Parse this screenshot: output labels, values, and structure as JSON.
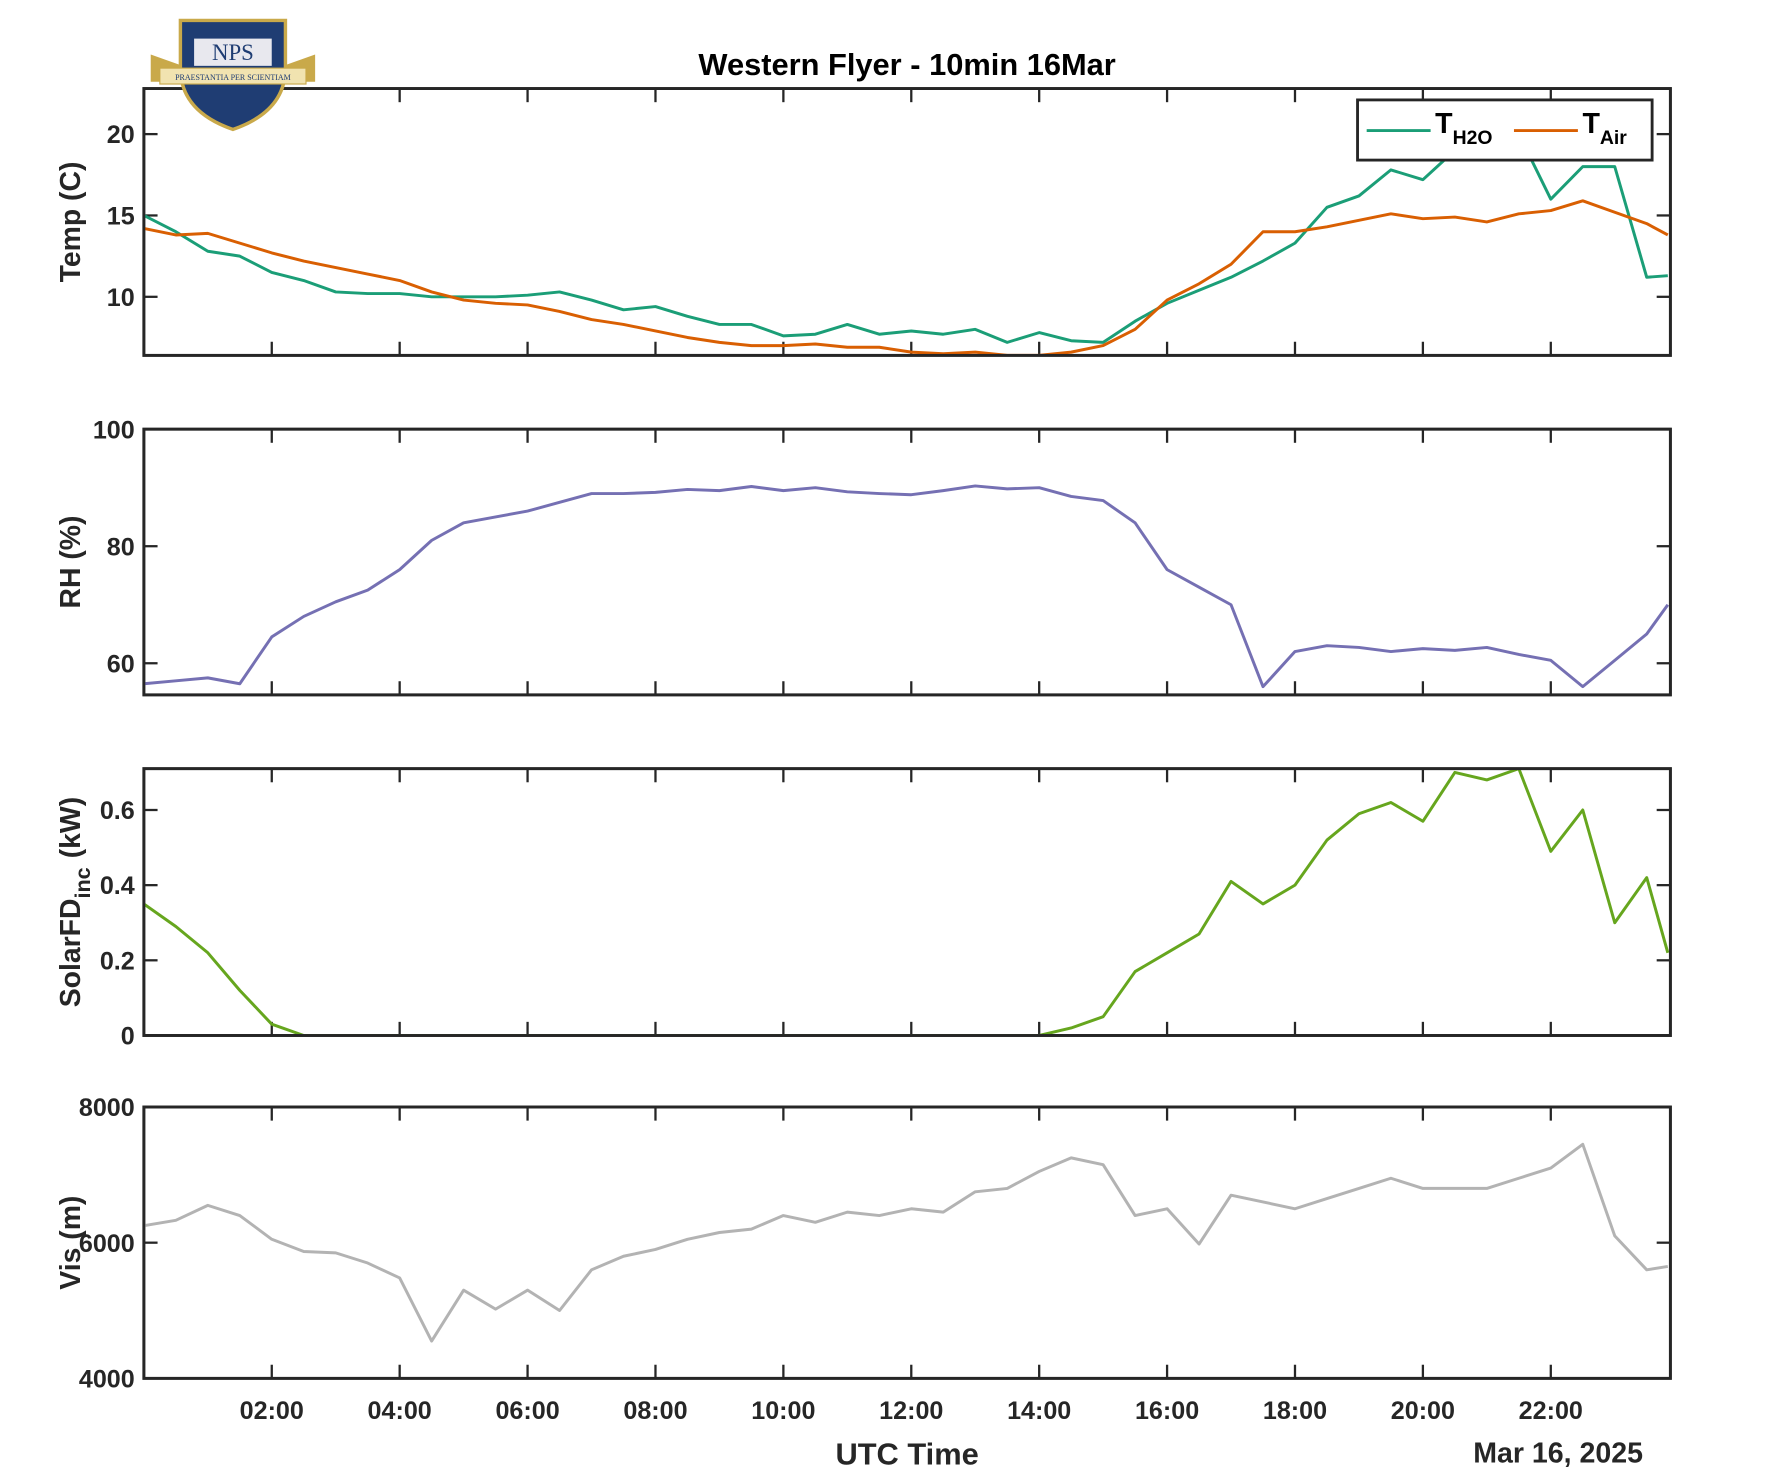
{
  "logo": {
    "text": "NPS",
    "motto": "PRAESTANTIA PER SCIENTIAM"
  },
  "chart_data": [
    {
      "type": "line",
      "title": "Western Flyer - 10min 16Mar",
      "ylabel": "Temp (C)",
      "x": [
        0,
        0.5,
        1,
        1.5,
        2,
        2.5,
        3,
        3.5,
        4,
        4.5,
        5,
        5.5,
        6,
        6.5,
        7,
        7.5,
        8,
        8.5,
        9,
        9.5,
        10,
        10.5,
        11,
        11.5,
        12,
        12.5,
        13,
        13.5,
        14,
        14.5,
        15,
        15.5,
        16,
        16.5,
        17,
        17.5,
        18,
        18.5,
        19,
        19.5,
        20,
        20.5,
        21,
        21.5,
        22,
        22.5,
        23,
        23.5,
        23.83
      ],
      "series": [
        {
          "name": "T",
          "name_sub": "H2O",
          "color": "#1b9e77",
          "values": [
            15,
            14,
            12.8,
            12.5,
            11.5,
            11,
            10.3,
            10.2,
            10.2,
            10,
            10,
            10,
            10.1,
            10.3,
            9.8,
            9.2,
            9.4,
            8.8,
            8.3,
            8.3,
            7.6,
            7.7,
            8.3,
            7.7,
            7.9,
            7.7,
            8,
            7.2,
            7.8,
            7.3,
            7.2,
            8.5,
            9.6,
            10.4,
            11.2,
            12.2,
            13.3,
            15.5,
            16.2,
            17.8,
            17.2,
            19,
            20.8,
            20,
            16,
            18,
            18,
            11.2,
            11.3
          ]
        },
        {
          "name": "T",
          "name_sub": "Air",
          "color": "#d95f02",
          "values": [
            14.2,
            13.8,
            13.9,
            13.3,
            12.7,
            12.2,
            11.8,
            11.4,
            11,
            10.3,
            9.8,
            9.6,
            9.5,
            9.1,
            8.6,
            8.3,
            7.9,
            7.5,
            7.2,
            7,
            7,
            7.1,
            6.9,
            6.9,
            6.6,
            6.5,
            6.6,
            6.4,
            6.4,
            6.6,
            7,
            8,
            9.8,
            10.8,
            12,
            14,
            14,
            14.3,
            14.7,
            15.1,
            14.8,
            14.9,
            14.6,
            15.1,
            15.3,
            15.9,
            15.2,
            14.5,
            13.8
          ]
        }
      ],
      "xlim": [
        0,
        23.87
      ],
      "xticks": [
        2,
        4,
        6,
        8,
        10,
        12,
        14,
        16,
        18,
        20,
        22
      ],
      "ylim": [
        6.4,
        22.8
      ],
      "yticks": [
        10,
        15,
        20
      ],
      "legend": "upper right"
    },
    {
      "type": "line",
      "ylabel": "RH (%)",
      "x": [
        0,
        0.5,
        1,
        1.5,
        2,
        2.5,
        3,
        3.5,
        4,
        4.5,
        5,
        5.5,
        6,
        6.5,
        7,
        7.5,
        8,
        8.5,
        9,
        9.5,
        10,
        10.5,
        11,
        11.5,
        12,
        12.5,
        13,
        13.5,
        14,
        14.5,
        15,
        15.5,
        16,
        16.5,
        17,
        17.5,
        18,
        18.5,
        19,
        19.5,
        20,
        20.5,
        21,
        21.5,
        22,
        22.5,
        23,
        23.5,
        23.83
      ],
      "series": [
        {
          "color": "#7570b3",
          "values": [
            56.5,
            57,
            57.5,
            56.5,
            64.5,
            68,
            70.5,
            72.5,
            76,
            81,
            84,
            85,
            86,
            87.5,
            89,
            89,
            89.2,
            89.7,
            89.5,
            90.2,
            89.5,
            90,
            89.3,
            89,
            88.8,
            89.5,
            90.3,
            89.8,
            90,
            88.5,
            87.8,
            84,
            76,
            73,
            70,
            56,
            62,
            63,
            62.7,
            62,
            62.5,
            62.2,
            62.7,
            61.5,
            60.5,
            56,
            60.5,
            65,
            70
          ]
        }
      ],
      "xlim": [
        0,
        23.87
      ],
      "xticks": [
        2,
        4,
        6,
        8,
        10,
        12,
        14,
        16,
        18,
        20,
        22
      ],
      "ylim": [
        54.6,
        100
      ],
      "yticks": [
        60,
        80,
        100
      ]
    },
    {
      "type": "line",
      "ylabel": "SolarFD",
      "ylabel_sub": "inc",
      "ylabel_suffix": "(kW)",
      "x": [
        0,
        0.5,
        1,
        1.5,
        2,
        2.5,
        3,
        3.5,
        4,
        4.5,
        5,
        5.5,
        6,
        6.5,
        7,
        7.5,
        8,
        8.5,
        9,
        9.5,
        10,
        10.5,
        11,
        11.5,
        12,
        12.5,
        13,
        13.5,
        14,
        14.5,
        15,
        15.5,
        16,
        16.5,
        17,
        17.5,
        18,
        18.5,
        19,
        19.5,
        20,
        20.5,
        21,
        21.5,
        22,
        22.5,
        23,
        23.5,
        23.83
      ],
      "series": [
        {
          "color": "#66a61e",
          "values": [
            0.35,
            0.29,
            0.22,
            0.12,
            0.03,
            0,
            0,
            0,
            0,
            0,
            0,
            0,
            0,
            0,
            0,
            0,
            0,
            0,
            0,
            0,
            0,
            0,
            0,
            0,
            0,
            0,
            0,
            0,
            0,
            0.02,
            0.05,
            0.17,
            0.22,
            0.27,
            0.41,
            0.35,
            0.4,
            0.52,
            0.59,
            0.62,
            0.57,
            0.7,
            0.68,
            0.71,
            0.49,
            0.6,
            0.3,
            0.42,
            0.22
          ]
        }
      ],
      "xlim": [
        0,
        23.87
      ],
      "xticks": [
        2,
        4,
        6,
        8,
        10,
        12,
        14,
        16,
        18,
        20,
        22
      ],
      "ylim": [
        0,
        0.71
      ],
      "yticks": [
        0,
        0.2,
        0.4,
        0.6
      ]
    },
    {
      "type": "line",
      "ylabel": "Vis (m)",
      "xlabel": "UTC Time",
      "date": "Mar 16, 2025",
      "x": [
        0,
        0.5,
        1,
        1.5,
        2,
        2.5,
        3,
        3.5,
        4,
        4.5,
        5,
        5.5,
        6,
        6.5,
        7,
        7.5,
        8,
        8.5,
        9,
        9.5,
        10,
        10.5,
        11,
        11.5,
        12,
        12.5,
        13,
        13.5,
        14,
        14.5,
        15,
        15.5,
        16,
        16.5,
        17,
        17.5,
        18,
        18.5,
        19,
        19.5,
        20,
        20.5,
        21,
        21.5,
        22,
        22.5,
        23,
        23.5,
        23.83
      ],
      "series": [
        {
          "color": "#b3b3b3",
          "values": [
            6250,
            6330,
            6550,
            6400,
            6050,
            5870,
            5850,
            5700,
            5480,
            4550,
            5300,
            5020,
            5300,
            5000,
            5600,
            5800,
            5900,
            6050,
            6150,
            6200,
            6400,
            6300,
            6450,
            6400,
            6500,
            6450,
            6750,
            6800,
            7050,
            7250,
            7150,
            6400,
            6500,
            5980,
            6700,
            6600,
            6500,
            6650,
            6800,
            6950,
            6800,
            6800,
            6800,
            6950,
            7100,
            7450,
            6100,
            5600,
            5650
          ]
        }
      ],
      "xlim": [
        0,
        23.87
      ],
      "xticks": [
        {
          "value": 2,
          "label": "02:00"
        },
        {
          "value": 4,
          "label": "04:00"
        },
        {
          "value": 6,
          "label": "06:00"
        },
        {
          "value": 8,
          "label": "08:00"
        },
        {
          "value": 10,
          "label": "10:00"
        },
        {
          "value": 12,
          "label": "12:00"
        },
        {
          "value": 14,
          "label": "14:00"
        },
        {
          "value": 16,
          "label": "16:00"
        },
        {
          "value": 18,
          "label": "18:00"
        },
        {
          "value": 20,
          "label": "20:00"
        },
        {
          "value": 22,
          "label": "22:00"
        }
      ],
      "ylim": [
        4000,
        8000
      ],
      "yticks": [
        4000,
        6000,
        8000
      ]
    }
  ]
}
